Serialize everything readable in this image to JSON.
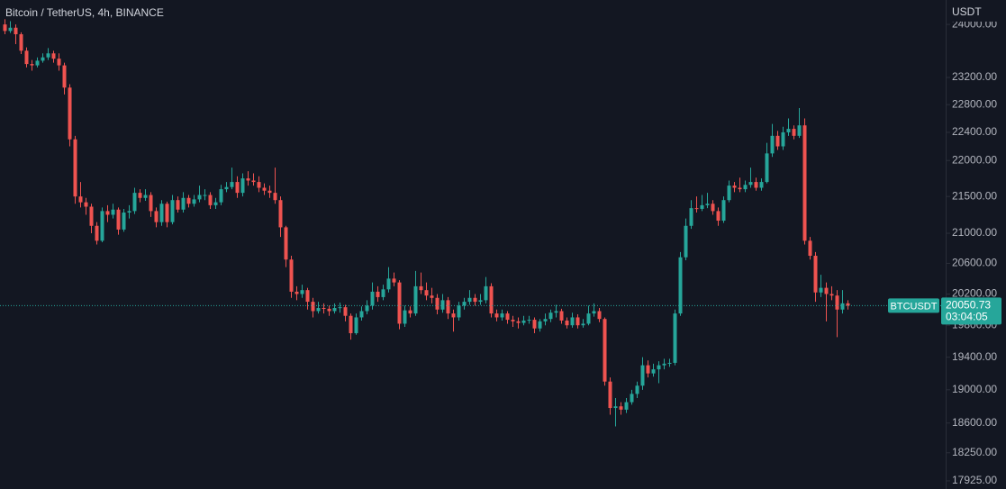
{
  "chart_data": {
    "type": "candlestick",
    "title": "Bitcoin / TetherUS, 4h, BINANCE",
    "y_axis_label": "USDT",
    "symbol": "BTCUSDT",
    "countdown": "03:04:05",
    "log_scale": true,
    "up_color": "#26a69a",
    "down_color": "#ef5350",
    "ylim": [
      17832,
      24378
    ],
    "yticks": [
      {
        "value": 24000,
        "label": "24000.00"
      },
      {
        "value": 23200,
        "label": "23200.00"
      },
      {
        "value": 22800,
        "label": "22800.00"
      },
      {
        "value": 22400,
        "label": "22400.00"
      },
      {
        "value": 22000,
        "label": "22000.00"
      },
      {
        "value": 21500,
        "label": "21500.00"
      },
      {
        "value": 21000,
        "label": "21000.00"
      },
      {
        "value": 20600,
        "label": "20600.00"
      },
      {
        "value": 20200,
        "label": "20200.00"
      },
      {
        "value": 19800,
        "label": "19800.00"
      },
      {
        "value": 19400,
        "label": "19400.00"
      },
      {
        "value": 19000,
        "label": "19000.00"
      },
      {
        "value": 18600,
        "label": "18600.00"
      },
      {
        "value": 18250,
        "label": "18250.00"
      },
      {
        "value": 17925,
        "label": "17925.00"
      }
    ],
    "ohlc": [
      [
        24000,
        24080,
        23850,
        23900
      ],
      [
        23900,
        24050,
        23870,
        23950
      ],
      [
        23950,
        24000,
        23700,
        23850
      ],
      [
        23850,
        23880,
        23550,
        23600
      ],
      [
        23600,
        23650,
        23350,
        23400
      ],
      [
        23400,
        23460,
        23300,
        23380
      ],
      [
        23380,
        23500,
        23350,
        23450
      ],
      [
        23450,
        23560,
        23420,
        23500
      ],
      [
        23500,
        23640,
        23460,
        23560
      ],
      [
        23560,
        23600,
        23420,
        23480
      ],
      [
        23480,
        23560,
        23300,
        23380
      ],
      [
        23380,
        23420,
        22950,
        23050
      ],
      [
        23050,
        23100,
        22200,
        22300
      ],
      [
        22300,
        22350,
        21400,
        21500
      ],
      [
        21500,
        21700,
        21350,
        21420
      ],
      [
        21420,
        21480,
        21250,
        21360
      ],
      [
        21360,
        21400,
        21000,
        21100
      ],
      [
        21100,
        21150,
        20850,
        20900
      ],
      [
        20900,
        21350,
        20880,
        21300
      ],
      [
        21300,
        21380,
        21150,
        21250
      ],
      [
        21250,
        21400,
        21200,
        21320
      ],
      [
        21320,
        21350,
        20980,
        21050
      ],
      [
        21050,
        21330,
        21020,
        21280
      ],
      [
        21280,
        21380,
        21200,
        21300
      ],
      [
        21300,
        21620,
        21260,
        21550
      ],
      [
        21550,
        21600,
        21420,
        21480
      ],
      [
        21480,
        21600,
        21440,
        21520
      ],
      [
        21520,
        21560,
        21220,
        21300
      ],
      [
        21300,
        21350,
        21080,
        21150
      ],
      [
        21150,
        21450,
        21100,
        21400
      ],
      [
        21400,
        21430,
        21080,
        21150
      ],
      [
        21150,
        21520,
        21120,
        21450
      ],
      [
        21450,
        21500,
        21280,
        21320
      ],
      [
        21320,
        21560,
        21280,
        21480
      ],
      [
        21480,
        21520,
        21350,
        21400
      ],
      [
        21400,
        21520,
        21360,
        21460
      ],
      [
        21460,
        21650,
        21420,
        21520
      ],
      [
        21520,
        21600,
        21450,
        21520
      ],
      [
        21520,
        21560,
        21330,
        21380
      ],
      [
        21380,
        21480,
        21330,
        21420
      ],
      [
        21420,
        21660,
        21380,
        21600
      ],
      [
        21600,
        21700,
        21560,
        21630
      ],
      [
        21630,
        21900,
        21600,
        21700
      ],
      [
        21700,
        21780,
        21480,
        21550
      ],
      [
        21550,
        21820,
        21500,
        21750
      ],
      [
        21750,
        21850,
        21650,
        21720
      ],
      [
        21720,
        21820,
        21650,
        21700
      ],
      [
        21700,
        21780,
        21560,
        21620
      ],
      [
        21620,
        21680,
        21520,
        21580
      ],
      [
        21580,
        21650,
        21480,
        21550
      ],
      [
        21550,
        21900,
        21400,
        21450
      ],
      [
        21450,
        21500,
        20950,
        21080
      ],
      [
        21080,
        21100,
        20550,
        20650
      ],
      [
        20650,
        20700,
        20150,
        20230
      ],
      [
        20230,
        20300,
        20120,
        20200
      ],
      [
        20200,
        20320,
        20150,
        20250
      ],
      [
        20250,
        20280,
        20000,
        20100
      ],
      [
        20100,
        20150,
        19900,
        19980
      ],
      [
        19980,
        20100,
        19950,
        20020
      ],
      [
        20020,
        20080,
        19950,
        20010
      ],
      [
        20010,
        20050,
        19920,
        19980
      ],
      [
        19980,
        20080,
        19950,
        20020
      ],
      [
        20020,
        20090,
        19960,
        20030
      ],
      [
        20030,
        20060,
        19850,
        19920
      ],
      [
        19920,
        19950,
        19620,
        19700
      ],
      [
        19700,
        19950,
        19680,
        19900
      ],
      [
        19900,
        20040,
        19860,
        19980
      ],
      [
        19980,
        20120,
        19940,
        20050
      ],
      [
        20050,
        20350,
        20000,
        20230
      ],
      [
        20230,
        20300,
        20100,
        20160
      ],
      [
        20160,
        20320,
        20120,
        20260
      ],
      [
        20260,
        20550,
        20220,
        20400
      ],
      [
        20400,
        20480,
        20300,
        20350
      ],
      [
        20350,
        20380,
        19750,
        19820
      ],
      [
        19820,
        20050,
        19780,
        19990
      ],
      [
        19990,
        20040,
        19900,
        19950
      ],
      [
        19950,
        20500,
        19920,
        20300
      ],
      [
        20300,
        20480,
        20200,
        20250
      ],
      [
        20250,
        20350,
        20120,
        20180
      ],
      [
        20180,
        20280,
        20080,
        20150
      ],
      [
        20150,
        20200,
        19940,
        20000
      ],
      [
        20000,
        20200,
        19960,
        20120
      ],
      [
        20120,
        20160,
        19880,
        19950
      ],
      [
        19950,
        20000,
        19720,
        19900
      ],
      [
        19900,
        20100,
        19860,
        20050
      ],
      [
        20050,
        20150,
        20000,
        20100
      ],
      [
        20100,
        20250,
        20060,
        20150
      ],
      [
        20150,
        20200,
        20050,
        20100
      ],
      [
        20100,
        20200,
        20060,
        20120
      ],
      [
        20120,
        20420,
        20080,
        20300
      ],
      [
        20300,
        20340,
        19900,
        19950
      ],
      [
        19950,
        20000,
        19850,
        19900
      ],
      [
        19900,
        20000,
        19860,
        19950
      ],
      [
        19950,
        19980,
        19820,
        19870
      ],
      [
        19870,
        19920,
        19780,
        19850
      ],
      [
        19850,
        19900,
        19760,
        19830
      ],
      [
        19830,
        19920,
        19800,
        19860
      ],
      [
        19860,
        19920,
        19820,
        19870
      ],
      [
        19870,
        19900,
        19700,
        19760
      ],
      [
        19760,
        19880,
        19720,
        19850
      ],
      [
        19850,
        19950,
        19800,
        19880
      ],
      [
        19880,
        20000,
        19840,
        19960
      ],
      [
        19960,
        20060,
        19900,
        19980
      ],
      [
        19980,
        20010,
        19820,
        19860
      ],
      [
        19860,
        19900,
        19760,
        19800
      ],
      [
        19800,
        19960,
        19770,
        19900
      ],
      [
        19900,
        19940,
        19760,
        19800
      ],
      [
        19800,
        19880,
        19770,
        19820
      ],
      [
        19820,
        20050,
        19800,
        19950
      ],
      [
        19950,
        20080,
        19910,
        19980
      ],
      [
        19980,
        20020,
        19840,
        19880
      ],
      [
        19880,
        19900,
        19050,
        19100
      ],
      [
        19100,
        19150,
        18700,
        18780
      ],
      [
        18780,
        18900,
        18560,
        18800
      ],
      [
        18800,
        18850,
        18700,
        18760
      ],
      [
        18760,
        18900,
        18720,
        18850
      ],
      [
        18850,
        19000,
        18820,
        18950
      ],
      [
        18950,
        19100,
        18900,
        19050
      ],
      [
        19050,
        19400,
        19000,
        19300
      ],
      [
        19300,
        19360,
        19150,
        19200
      ],
      [
        19200,
        19320,
        19160,
        19250
      ],
      [
        19250,
        19350,
        19080,
        19300
      ],
      [
        19300,
        19380,
        19250,
        19320
      ],
      [
        19320,
        19380,
        19280,
        19330
      ],
      [
        19330,
        20000,
        19300,
        19950
      ],
      [
        19950,
        20750,
        19920,
        20680
      ],
      [
        20680,
        21200,
        20640,
        21100
      ],
      [
        21100,
        21450,
        21060,
        21340
      ],
      [
        21340,
        21500,
        21280,
        21330
      ],
      [
        21330,
        21520,
        21300,
        21380
      ],
      [
        21380,
        21550,
        21340,
        21400
      ],
      [
        21400,
        21450,
        21250,
        21300
      ],
      [
        21300,
        21350,
        21100,
        21170
      ],
      [
        21170,
        21500,
        21140,
        21450
      ],
      [
        21450,
        21720,
        21420,
        21650
      ],
      [
        21650,
        21700,
        21560,
        21620
      ],
      [
        21620,
        21760,
        21560,
        21600
      ],
      [
        21600,
        21720,
        21560,
        21660
      ],
      [
        21660,
        21900,
        21620,
        21700
      ],
      [
        21700,
        21760,
        21580,
        21620
      ],
      [
        21620,
        21750,
        21580,
        21700
      ],
      [
        21700,
        22250,
        21680,
        22100
      ],
      [
        22100,
        22520,
        22050,
        22350
      ],
      [
        22350,
        22420,
        22150,
        22200
      ],
      [
        22200,
        22480,
        22150,
        22400
      ],
      [
        22400,
        22600,
        22350,
        22450
      ],
      [
        22450,
        22500,
        22300,
        22350
      ],
      [
        22350,
        22750,
        22320,
        22500
      ],
      [
        22500,
        22600,
        20850,
        20900
      ],
      [
        20900,
        20950,
        20650,
        20700
      ],
      [
        20700,
        20750,
        20100,
        20220
      ],
      [
        20220,
        20450,
        20160,
        20280
      ],
      [
        20280,
        20350,
        19850,
        20200
      ],
      [
        20200,
        20300,
        20120,
        20180
      ],
      [
        20180,
        20250,
        19650,
        20000
      ],
      [
        20000,
        20250,
        19950,
        20080
      ],
      [
        20080,
        20120,
        20000,
        20050.73
      ]
    ]
  }
}
